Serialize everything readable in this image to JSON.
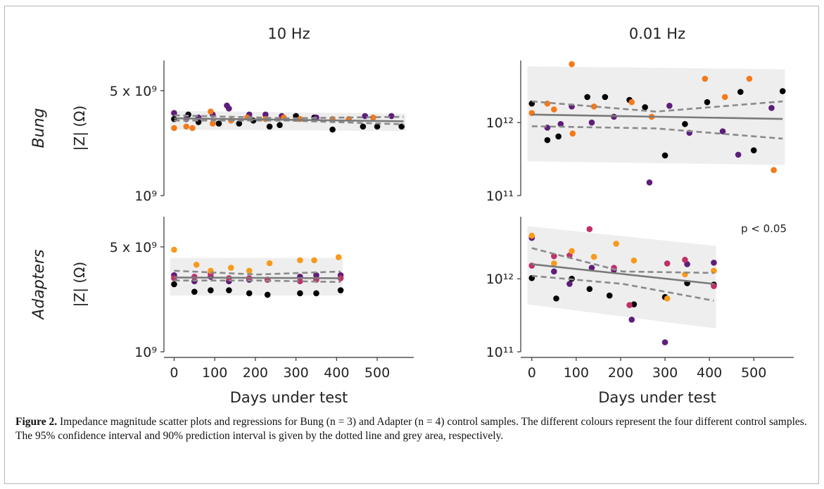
{
  "caption": {
    "label": "Figure 2.",
    "text": "Impedance magnitude scatter plots and regressions for Bung (n = 3) and Adapter (n = 4) control samples. The different colours represent the four different control samples. The 95% confidence interval and 90% prediction interval is given by the dotted line and grey area, respectively."
  },
  "colors": {
    "s1": "#000000",
    "s2": "#5e1d7a",
    "s3": "#c0306a",
    "s4": "#f47a1a",
    "s5": "#f89a1c",
    "line": "#7a7a7a",
    "band": "#efefef"
  },
  "chart_data": [
    {
      "type": "scatter",
      "column_title": "10 Hz",
      "row_label": "Bung",
      "ylabel": "|Z|  (Ω)",
      "xlabel": "",
      "xlim": [
        -25,
        590
      ],
      "ylim_log10": [
        9,
        9.9
      ],
      "ytick_labels": [
        "10⁹",
        "5 x 10⁹"
      ],
      "ytick_values_log10": [
        9,
        9.699
      ],
      "series": [
        {
          "color": "s1",
          "x": [
            0,
            35,
            60,
            110,
            160,
            195,
            235,
            260,
            300,
            345,
            390,
            465,
            500,
            560
          ],
          "y_log10": [
            9.51,
            9.54,
            9.49,
            9.48,
            9.48,
            9.5,
            9.46,
            9.47,
            9.53,
            9.52,
            9.44,
            9.46,
            9.46,
            9.46
          ]
        },
        {
          "color": "s2",
          "x": [
            0,
            30,
            60,
            95,
            130,
            135,
            185,
            225,
            265,
            350,
            470,
            535
          ],
          "y_log10": [
            9.55,
            9.51,
            9.52,
            9.54,
            9.6,
            9.58,
            9.54,
            9.54,
            9.53,
            9.52,
            9.53,
            9.53
          ]
        },
        {
          "color": "s4",
          "x": [
            0,
            30,
            45,
            90,
            95,
            140,
            180,
            225,
            270,
            310,
            390,
            430,
            490
          ],
          "y_log10": [
            9.45,
            9.46,
            9.45,
            9.56,
            9.48,
            9.5,
            9.52,
            9.51,
            9.52,
            9.51,
            9.51,
            9.51,
            9.52
          ]
        }
      ],
      "fit": [
        [
          0,
          9.515
        ],
        [
          565,
          9.495
        ]
      ],
      "ci_upper": [
        [
          0,
          9.535
        ],
        [
          280,
          9.515
        ],
        [
          565,
          9.525
        ]
      ],
      "ci_lower": [
        [
          0,
          9.5
        ],
        [
          280,
          9.5
        ],
        [
          565,
          9.475
        ]
      ],
      "band": [
        [
          -10,
          9.565,
          9.44
        ],
        [
          570,
          9.545,
          9.43
        ]
      ]
    },
    {
      "type": "scatter",
      "column_title": "0.01 Hz",
      "row_label": "",
      "ylabel": "",
      "xlabel": "",
      "xlim": [
        -25,
        590
      ],
      "ylim_log10": [
        11,
        12.85
      ],
      "ytick_labels": [
        "10¹¹",
        "10¹²"
      ],
      "ytick_values_log10": [
        11,
        12
      ],
      "series": [
        {
          "color": "s1",
          "x": [
            0,
            35,
            60,
            125,
            165,
            220,
            255,
            300,
            345,
            395,
            470,
            500,
            565
          ],
          "y_log10": [
            12.26,
            11.76,
            11.81,
            12.35,
            12.35,
            12.31,
            12.21,
            11.55,
            11.98,
            12.28,
            12.42,
            11.62,
            12.43
          ]
        },
        {
          "color": "s2",
          "x": [
            35,
            65,
            90,
            135,
            185,
            265,
            310,
            355,
            430,
            465,
            540
          ],
          "y_log10": [
            11.93,
            11.98,
            12.22,
            12.0,
            12.08,
            11.18,
            12.23,
            11.86,
            11.88,
            11.56,
            12.2
          ]
        },
        {
          "color": "s4",
          "x": [
            0,
            35,
            50,
            90,
            92,
            140,
            225,
            270,
            390,
            435,
            490,
            545
          ],
          "y_log10": [
            12.13,
            12.26,
            12.18,
            12.8,
            11.85,
            12.22,
            12.28,
            12.08,
            12.6,
            12.35,
            12.6,
            11.35
          ]
        }
      ],
      "fit": [
        [
          0,
          12.11
        ],
        [
          565,
          12.05
        ]
      ],
      "ci_upper": [
        [
          0,
          12.29
        ],
        [
          280,
          12.15
        ],
        [
          565,
          12.29
        ]
      ],
      "ci_lower": [
        [
          0,
          11.95
        ],
        [
          280,
          11.92
        ],
        [
          565,
          11.78
        ]
      ],
      "band": [
        [
          -10,
          12.77,
          11.47
        ],
        [
          570,
          12.73,
          11.42
        ]
      ]
    },
    {
      "type": "scatter",
      "column_title": "",
      "row_label": "Adapters",
      "ylabel": "|Z|  (Ω)",
      "xlabel": "Days under test",
      "xlim": [
        -25,
        590
      ],
      "ylim_log10": [
        9,
        9.9
      ],
      "ytick_labels": [
        "10⁹",
        "5 x 10⁹"
      ],
      "ytick_values_log10": [
        9,
        9.699
      ],
      "series": [
        {
          "color": "s1",
          "x": [
            0,
            50,
            90,
            135,
            185,
            230,
            310,
            350,
            410
          ],
          "y_log10": [
            9.45,
            9.4,
            9.41,
            9.41,
            9.39,
            9.38,
            9.39,
            9.39,
            9.41
          ]
        },
        {
          "color": "s2",
          "x": [
            0,
            50,
            90,
            135,
            185,
            230,
            310,
            350,
            410
          ],
          "y_log10": [
            9.51,
            9.47,
            9.5,
            9.47,
            9.48,
            9.48,
            9.5,
            9.51,
            9.51
          ]
        },
        {
          "color": "s3",
          "x": [
            0,
            50,
            90,
            135,
            185,
            230,
            310,
            350,
            410
          ],
          "y_log10": [
            9.49,
            9.5,
            9.52,
            9.49,
            9.49,
            9.48,
            9.47,
            9.48,
            9.49
          ]
        },
        {
          "color": "s5",
          "x": [
            0,
            55,
            90,
            140,
            185,
            235,
            310,
            345,
            405
          ],
          "y_log10": [
            9.68,
            9.58,
            9.54,
            9.56,
            9.54,
            9.59,
            9.61,
            9.61,
            9.63
          ]
        }
      ],
      "fit": [
        [
          0,
          9.495
        ],
        [
          410,
          9.49
        ]
      ],
      "ci_upper": [
        [
          0,
          9.54
        ],
        [
          205,
          9.515
        ],
        [
          410,
          9.535
        ]
      ],
      "ci_lower": [
        [
          0,
          9.475
        ],
        [
          205,
          9.475
        ],
        [
          410,
          9.465
        ]
      ],
      "band": [
        [
          -10,
          9.625,
          9.375
        ],
        [
          415,
          9.625,
          9.375
        ]
      ]
    },
    {
      "type": "scatter",
      "column_title": "",
      "row_label": "",
      "ylabel": "",
      "xlabel": "Days under test",
      "annotation": "p < 0.05",
      "xlim": [
        -25,
        590
      ],
      "ylim_log10": [
        11,
        12.85
      ],
      "ytick_labels": [
        "10¹¹",
        "10¹²"
      ],
      "ytick_values_log10": [
        11,
        12
      ],
      "series": [
        {
          "color": "s1",
          "x": [
            0,
            55,
            90,
            130,
            175,
            230,
            300,
            350,
            410
          ],
          "y_log10": [
            12.01,
            11.73,
            12.0,
            11.86,
            11.77,
            11.65,
            11.75,
            11.94,
            11.92
          ]
        },
        {
          "color": "s2",
          "x": [
            0,
            50,
            85,
            135,
            185,
            225,
            300,
            350,
            410
          ],
          "y_log10": [
            12.56,
            12.1,
            11.93,
            12.15,
            12.12,
            11.44,
            11.13,
            12.2,
            12.22
          ]
        },
        {
          "color": "s3",
          "x": [
            0,
            50,
            85,
            130,
            185,
            220,
            305,
            345,
            410
          ],
          "y_log10": [
            12.18,
            12.31,
            12.32,
            12.68,
            12.15,
            11.64,
            12.21,
            12.26,
            11.9
          ]
        },
        {
          "color": "s5",
          "x": [
            0,
            50,
            90,
            140,
            190,
            230,
            305,
            345,
            410
          ],
          "y_log10": [
            12.59,
            12.21,
            12.38,
            12.3,
            12.48,
            12.25,
            11.73,
            12.06,
            12.11
          ]
        }
      ],
      "fit": [
        [
          0,
          12.2
        ],
        [
          410,
          11.93
        ]
      ],
      "ci_upper": [
        [
          0,
          12.42
        ],
        [
          205,
          12.1
        ],
        [
          410,
          12.08
        ]
      ],
      "ci_lower": [
        [
          0,
          12.04
        ],
        [
          205,
          11.93
        ],
        [
          410,
          11.7
        ]
      ],
      "band": [
        [
          -10,
          12.72,
          11.65
        ],
        [
          415,
          12.45,
          11.32
        ]
      ]
    }
  ]
}
